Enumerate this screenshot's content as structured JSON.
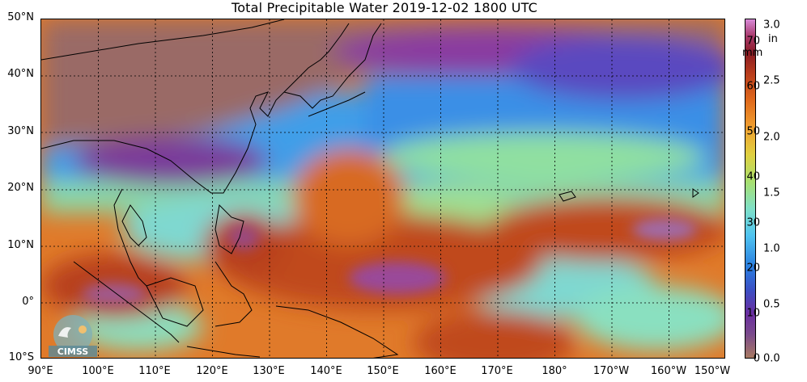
{
  "title": "Total Precipitable Water  2019-12-02 1800 UTC",
  "map": {
    "lat_labels": [
      "50°N",
      "40°N",
      "30°N",
      "20°N",
      "10°N",
      "0°",
      "10°S"
    ],
    "lon_labels": [
      "90°E",
      "100°E",
      "110°E",
      "120°E",
      "130°E",
      "140°E",
      "150°E",
      "160°E",
      "170°E",
      "180°",
      "170°W",
      "160°W",
      "150°W"
    ],
    "logo_text": "CIMSS"
  },
  "colorbar": {
    "mm_unit": "mm",
    "in_unit": "in",
    "mm_ticks": [
      "70",
      "60",
      "50",
      "40",
      "30",
      "20",
      "10",
      "0"
    ],
    "in_ticks": [
      "3.0",
      "2.5",
      "2.0",
      "1.5",
      "1.0",
      "0.5",
      "0.0"
    ]
  },
  "colors": {
    "dry": "#a87a62",
    "very_low": "#6a2ea0",
    "low": "#2a7fe0",
    "mid": "#7fe0c8",
    "high": "#e06a1c",
    "very_high": "#8a1c24",
    "extreme": "#d88ad8"
  }
}
